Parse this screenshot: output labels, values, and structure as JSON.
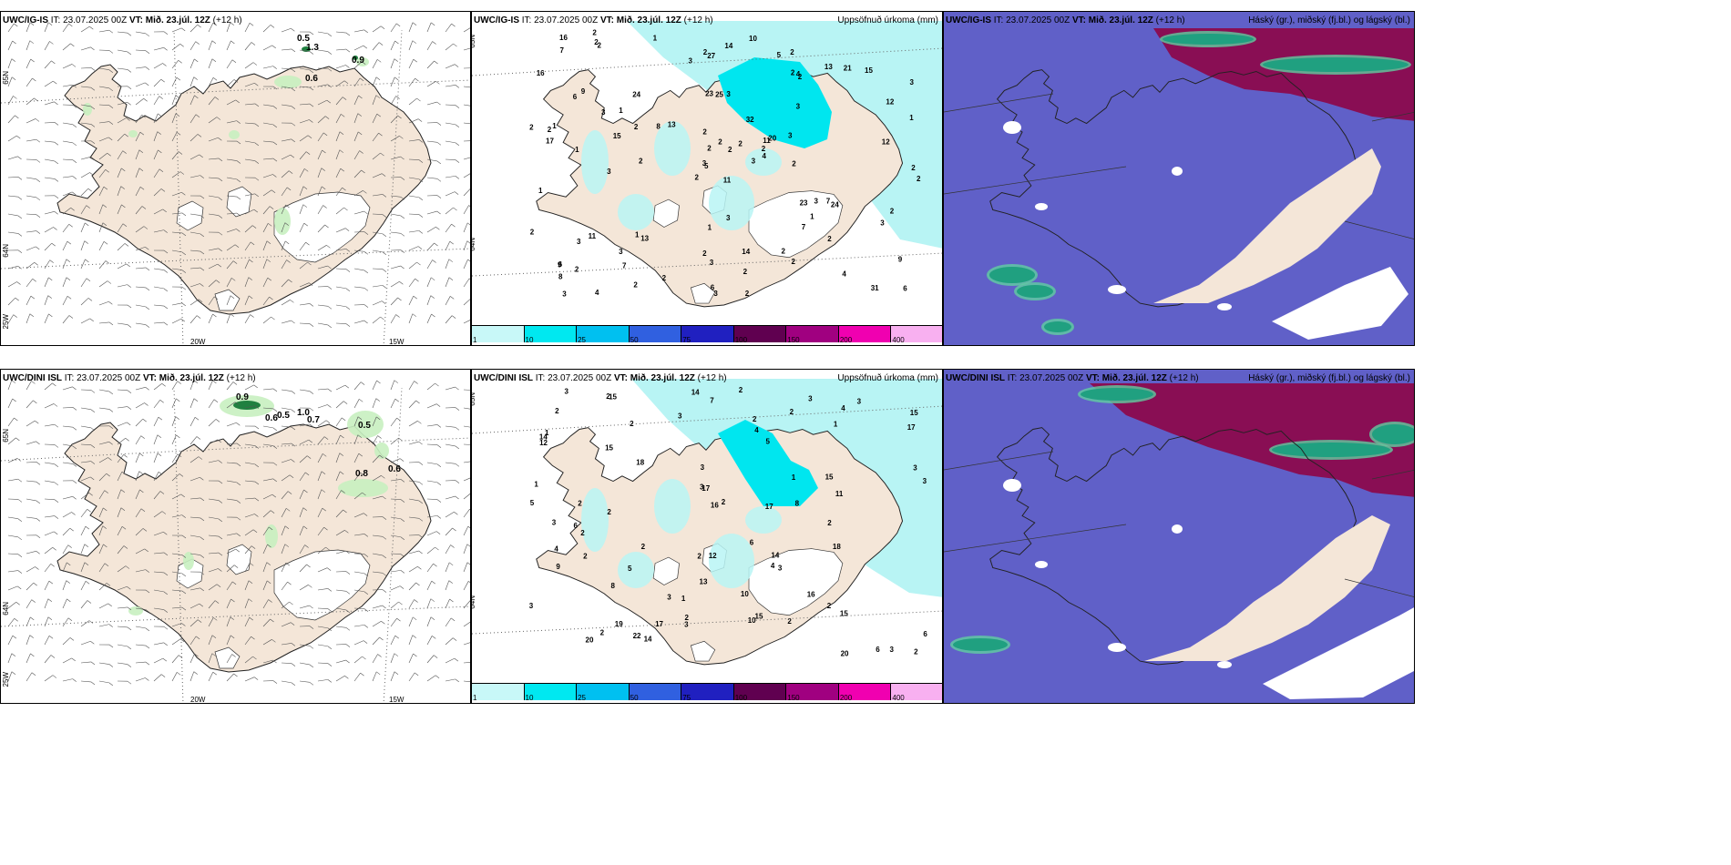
{
  "rows": [
    {
      "model": "UWC/IG-IS",
      "it_label": "IT:",
      "it_value": "23.07.2025 00Z",
      "vt_label": "VT:",
      "vt_value": "Mið. 23.júl. 12Z",
      "lead": "(+12 h)",
      "wind_values": [
        {
          "text": "0.5",
          "x": 325,
          "y": 32
        },
        {
          "text": "1.3",
          "x": 335,
          "y": 42
        },
        {
          "text": "0.9",
          "x": 385,
          "y": 56
        },
        {
          "text": "0.6",
          "x": 334,
          "y": 76
        }
      ],
      "precip_values": [
        "11",
        "6",
        "5",
        "6",
        "11",
        "13",
        "2",
        "3",
        "4",
        "3",
        "2",
        "6",
        "1",
        "3",
        "2",
        "3",
        "4",
        "23",
        "32",
        "11",
        "13",
        "8",
        "7",
        "25",
        "20",
        "24",
        "9",
        "27",
        "17",
        "23",
        "1",
        "3",
        "2",
        "2",
        "24",
        "13",
        "1",
        "31",
        "9",
        "7",
        "10",
        "8",
        "15",
        "7",
        "2",
        "2",
        "2",
        "3",
        "3",
        "4",
        "3",
        "12",
        "16",
        "1",
        "2",
        "3",
        "2",
        "16",
        "14",
        "15",
        "14",
        "2",
        "1",
        "1",
        "21",
        "2",
        "5",
        "3",
        "2",
        "2",
        "1",
        "2",
        "3",
        "2",
        "9",
        "7",
        "3",
        "1",
        "2",
        "2",
        "2",
        "2",
        "2",
        "2",
        "6",
        "12",
        "3",
        "4",
        "2",
        "2",
        "2",
        "2",
        "3",
        "2",
        "2",
        "3",
        "2",
        "3",
        "2",
        "2",
        "3",
        "1",
        "2"
      ],
      "panel2_title": "Uppsöfnuð úrkoma (mm)",
      "panel3_title": "Háský (gr.), miðský (fj.bl.) og lágský (bl.)",
      "lon_labels": [
        "20W",
        "15W"
      ],
      "lat_labels": [
        "65N",
        "64N",
        "25W"
      ]
    },
    {
      "model": "UWC/DINI ISL",
      "it_label": "IT:",
      "it_value": "23.07.2025 00Z",
      "vt_label": "VT:",
      "vt_value": "Mið. 23.júl. 12Z",
      "lead": "(+12 h)",
      "wind_values": [
        {
          "text": "0.9",
          "x": 258,
          "y": 33
        },
        {
          "text": "0.6",
          "x": 290,
          "y": 56
        },
        {
          "text": "0.5",
          "x": 303,
          "y": 53
        },
        {
          "text": "1.0",
          "x": 325,
          "y": 50
        },
        {
          "text": "0.7",
          "x": 336,
          "y": 58
        },
        {
          "text": "0.5",
          "x": 392,
          "y": 64
        },
        {
          "text": "0.8",
          "x": 389,
          "y": 117
        },
        {
          "text": "0.6",
          "x": 425,
          "y": 112
        }
      ],
      "precip_values": [
        "5",
        "7",
        "15",
        "15",
        "14",
        "6",
        "6",
        "5",
        "3",
        "3",
        "2",
        "18",
        "14",
        "12",
        "15",
        "8",
        "15",
        "3",
        "6",
        "13",
        "16",
        "15",
        "17",
        "17",
        "19",
        "16",
        "14",
        "15",
        "14",
        "10",
        "4",
        "20",
        "17",
        "20",
        "22",
        "9",
        "11",
        "2",
        "17",
        "18",
        "10",
        "8",
        "6",
        "3",
        "12",
        "5",
        "1",
        "3",
        "2",
        "2",
        "1",
        "2",
        "3",
        "2",
        "2",
        "3",
        "4",
        "3",
        "4",
        "4",
        "2",
        "2",
        "3",
        "2",
        "3",
        "2",
        "1",
        "2",
        "3",
        "1",
        "2",
        "3",
        "2",
        "3",
        "2",
        "2",
        "3",
        "2",
        "2",
        "1",
        "2"
      ],
      "panel2_title": "Uppsöfnuð úrkoma (mm)",
      "panel3_title": "Háský (gr.), miðský (fj.bl.) og lágský (bl.)",
      "lon_labels": [
        "20W",
        "15W"
      ],
      "lat_labels": [
        "65N",
        "64N",
        "25W"
      ]
    }
  ],
  "legend": {
    "labels": [
      "1",
      "10",
      "25",
      "50",
      "75",
      "100",
      "150",
      "200",
      "400"
    ],
    "colors": [
      "#c8f8f8",
      "#00e8f0",
      "#00c0f0",
      "#3060e0",
      "#2020c0",
      "#600050",
      "#a00080",
      "#f000b0",
      "#f8b0f0"
    ]
  },
  "colors": {
    "land": "#f4e6d8",
    "sea_precip": "#ffffff",
    "light_green": "#c8f0c0",
    "dark_green": "#208040",
    "cloud_blue": "#6060c8",
    "cloud_red": "#900040",
    "cloud_teal": "#20a080"
  }
}
